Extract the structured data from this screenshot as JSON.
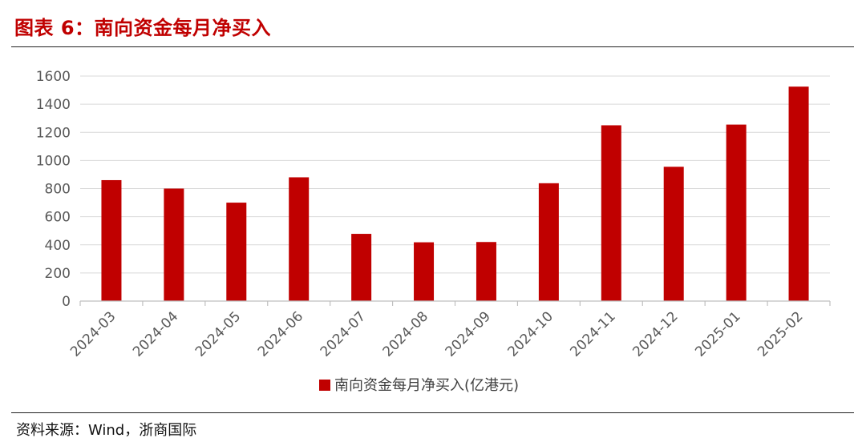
{
  "title": "图表 6：南向资金每月净买入",
  "source": "资料来源：Wind，浙商国际",
  "colors": {
    "bar": "#c00000",
    "title": "#c00000",
    "grid": "#d9d9d9",
    "axis": "#bfbfbf",
    "tick_text": "#595959"
  },
  "chart_data": {
    "type": "bar",
    "categories": [
      "2024-03",
      "2024-04",
      "2024-05",
      "2024-06",
      "2024-07",
      "2024-08",
      "2024-09",
      "2024-10",
      "2024-11",
      "2024-12",
      "2025-01",
      "2025-02"
    ],
    "series": [
      {
        "name": "南向资金每月净买入(亿港元)",
        "values": [
          860,
          800,
          700,
          880,
          478,
          418,
          420,
          838,
          1250,
          955,
          1255,
          1525
        ]
      }
    ],
    "y_ticks": [
      "0",
      "200",
      "400",
      "600",
      "800",
      "1000",
      "1200",
      "1400",
      "1600"
    ],
    "ylim": [
      0,
      1600
    ],
    "grid": true,
    "legend_position": "bottom-center"
  }
}
